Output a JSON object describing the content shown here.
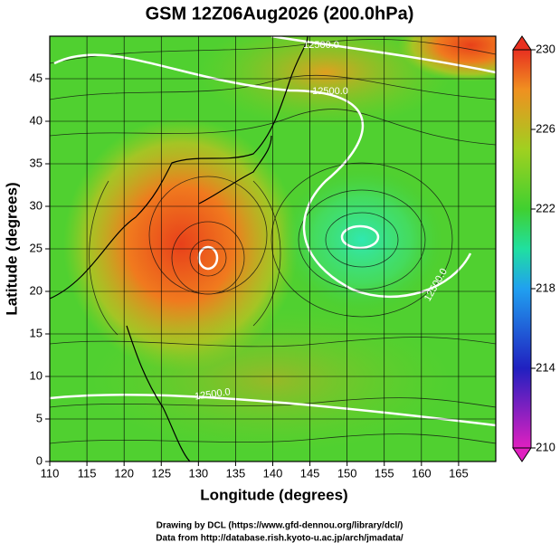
{
  "chart_data": {
    "type": "map",
    "title": "GSM 12Z06Aug2026 (200.0hPa)",
    "x_label": "Longitude (degrees)",
    "y_label": "Latitude  (degrees)",
    "xlim": [
      110,
      170
    ],
    "xticks": [
      110,
      115,
      120,
      125,
      130,
      135,
      140,
      145,
      150,
      155,
      160,
      165
    ],
    "ylim": [
      0,
      50
    ],
    "yticks": [
      0,
      5,
      10,
      15,
      20,
      25,
      30,
      35,
      40,
      45
    ],
    "grid": true,
    "colorbar": {
      "lim": [
        210,
        230
      ],
      "ticks": [
        210,
        214,
        218,
        222,
        226,
        230
      ]
    },
    "contour_labels": [
      "12500.0",
      "12500.0",
      "12500.0",
      "12500.0"
    ],
    "footer": [
      "Drawing by DCL (https://www.gfd-dennou.org/library/dcl/)",
      "Data from http://database.rish.kyoto-u.ac.jp/arch/jmadata/"
    ]
  }
}
